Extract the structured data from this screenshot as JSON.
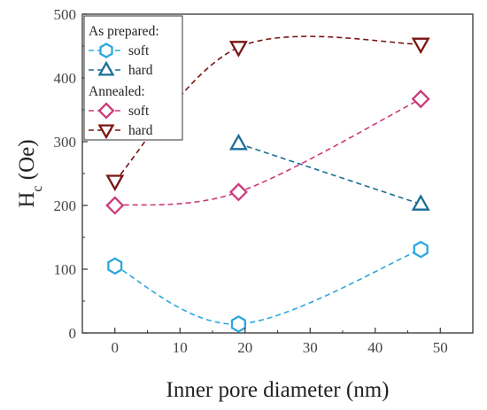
{
  "chart_data": {
    "type": "line",
    "xlabel": "Inner pore diameter (nm)",
    "ylabel": {
      "main": "H",
      "sub": "c",
      "rest": " (Oe)"
    },
    "xlim": [
      -5,
      55
    ],
    "ylim": [
      0,
      500
    ],
    "xticks": [
      0,
      10,
      20,
      30,
      40,
      50
    ],
    "yticks": [
      0,
      100,
      200,
      300,
      400,
      500
    ],
    "grid": false,
    "legend_position": "top-left",
    "legend_groups": [
      {
        "title": "As prepared:",
        "entries": [
          "soft",
          "hard"
        ]
      },
      {
        "title": "Annealed:",
        "entries": [
          "soft",
          "hard"
        ]
      }
    ],
    "series": [
      {
        "name": "soft",
        "group": "As prepared:",
        "marker": "hexagon",
        "color": "#2aa8df",
        "x": [
          0,
          19,
          47
        ],
        "y": [
          105,
          14,
          131
        ]
      },
      {
        "name": "hard",
        "group": "As prepared:",
        "marker": "triangle-up",
        "color": "#1a6e97",
        "x": [
          19,
          47
        ],
        "y": [
          297,
          202
        ]
      },
      {
        "name": "soft",
        "group": "Annealed:",
        "marker": "diamond",
        "color": "#cc3a7a",
        "x": [
          0,
          19,
          47
        ],
        "y": [
          200,
          221,
          367
        ]
      },
      {
        "name": "hard",
        "group": "Annealed:",
        "marker": "triangle-down",
        "color": "#7b1414",
        "x": [
          0,
          19,
          47
        ],
        "y": [
          238,
          448,
          453
        ]
      }
    ]
  }
}
